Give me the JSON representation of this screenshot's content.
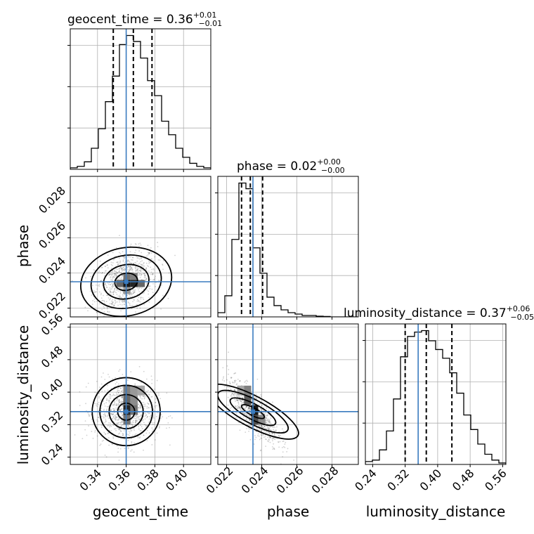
{
  "chart_data": {
    "type": "corner",
    "parameters": [
      "geocent_time",
      "phase",
      "luminosity_distance"
    ],
    "axis_labels": [
      "geocent_time",
      "phase",
      "luminosity_distance"
    ],
    "ranges": [
      [
        0.321,
        0.419
      ],
      [
        0.0215,
        0.0295
      ],
      [
        0.222,
        0.568
      ]
    ],
    "ticks": [
      [
        "0.34",
        "0.36",
        "0.38",
        "0.40"
      ],
      [
        "0.022",
        "0.024",
        "0.026",
        "0.028"
      ],
      [
        "0.24",
        "0.32",
        "0.40",
        "0.48",
        "0.56"
      ]
    ],
    "truths": [
      0.36,
      0.0235,
      0.352
    ],
    "titles": [
      {
        "label": "geocent_time = 0.36",
        "plus": "+0.01",
        "minus": "−0.01"
      },
      {
        "label": "phase = 0.02",
        "plus": "+0.00",
        "minus": "−0.00"
      },
      {
        "label": "luminosity_distance = 0.37",
        "plus": "+0.06",
        "minus": "−0.05"
      }
    ],
    "quantile_lines": [
      [
        0.351,
        0.365,
        0.378
      ],
      [
        0.02285,
        0.02335,
        0.02405
      ],
      [
        0.32,
        0.372,
        0.435
      ]
    ],
    "histograms": [
      {
        "counts": [
          1,
          2,
          5,
          14,
          27,
          45,
          62,
          83,
          89,
          85,
          74,
          59,
          49,
          32,
          23,
          14,
          8,
          4,
          2,
          1
        ]
      },
      {
        "counts": [
          3,
          15,
          55,
          95,
          91,
          49,
          31,
          14,
          8,
          5,
          3,
          2,
          1,
          1,
          0.5,
          0.3,
          0,
          0,
          0,
          0
        ]
      },
      {
        "counts": [
          2,
          3,
          10,
          23,
          45,
          74,
          88,
          91,
          92,
          85,
          79,
          73,
          63,
          49,
          34,
          24,
          14,
          7,
          3,
          1
        ]
      }
    ],
    "density_cells": [
      {
        "panel": "phase-vs-geocent_time",
        "x": 0.358,
        "y": 0.0232,
        "w": 0.005,
        "h": 0.0004,
        "level": 0.9
      },
      {
        "panel": "phase-vs-geocent_time",
        "x": 0.363,
        "y": 0.0232,
        "w": 0.005,
        "h": 0.0004,
        "level": 0.85
      },
      {
        "panel": "phase-vs-geocent_time",
        "x": 0.353,
        "y": 0.0232,
        "w": 0.005,
        "h": 0.0004,
        "level": 0.6
      },
      {
        "panel": "phase-vs-geocent_time",
        "x": 0.368,
        "y": 0.0232,
        "w": 0.005,
        "h": 0.0004,
        "level": 0.6
      },
      {
        "panel": "phase-vs-geocent_time",
        "x": 0.358,
        "y": 0.0236,
        "w": 0.005,
        "h": 0.0004,
        "level": 0.55
      },
      {
        "panel": "phase-vs-geocent_time",
        "x": 0.363,
        "y": 0.0236,
        "w": 0.005,
        "h": 0.0004,
        "level": 0.5
      },
      {
        "panel": "phase-vs-geocent_time",
        "x": 0.358,
        "y": 0.0228,
        "w": 0.005,
        "h": 0.0004,
        "level": 0.4
      },
      {
        "panel": "luminosity_distance-vs-geocent_time",
        "x": 0.358,
        "y": 0.344,
        "w": 0.005,
        "h": 0.024,
        "level": 0.85
      },
      {
        "panel": "luminosity_distance-vs-geocent_time",
        "x": 0.358,
        "y": 0.368,
        "w": 0.005,
        "h": 0.024,
        "level": 0.6
      },
      {
        "panel": "luminosity_distance-vs-geocent_time",
        "x": 0.363,
        "y": 0.344,
        "w": 0.005,
        "h": 0.024,
        "level": 0.55
      },
      {
        "panel": "luminosity_distance-vs-geocent_time",
        "x": 0.358,
        "y": 0.392,
        "w": 0.005,
        "h": 0.024,
        "level": 0.5
      },
      {
        "panel": "luminosity_distance-vs-geocent_time",
        "x": 0.363,
        "y": 0.392,
        "w": 0.005,
        "h": 0.024,
        "level": 0.4
      },
      {
        "panel": "luminosity_distance-vs-geocent_time",
        "x": 0.368,
        "y": 0.392,
        "w": 0.005,
        "h": 0.024,
        "level": 0.35
      },
      {
        "panel": "luminosity_distance-vs-geocent_time",
        "x": 0.358,
        "y": 0.32,
        "w": 0.005,
        "h": 0.024,
        "level": 0.55
      },
      {
        "panel": "luminosity_distance-vs-geocent_time",
        "x": 0.363,
        "y": 0.368,
        "w": 0.005,
        "h": 0.024,
        "level": 0.45
      },
      {
        "panel": "luminosity_distance-vs-phase",
        "x": 0.0234,
        "y": 0.344,
        "w": 0.0004,
        "h": 0.024,
        "level": 0.9
      },
      {
        "panel": "luminosity_distance-vs-phase",
        "x": 0.0234,
        "y": 0.32,
        "w": 0.0004,
        "h": 0.024,
        "level": 0.7
      },
      {
        "panel": "luminosity_distance-vs-phase",
        "x": 0.023,
        "y": 0.368,
        "w": 0.0004,
        "h": 0.024,
        "level": 0.65
      },
      {
        "panel": "luminosity_distance-vs-phase",
        "x": 0.023,
        "y": 0.392,
        "w": 0.0004,
        "h": 0.024,
        "level": 0.5
      },
      {
        "panel": "luminosity_distance-vs-phase",
        "x": 0.0238,
        "y": 0.32,
        "w": 0.0004,
        "h": 0.024,
        "level": 0.45
      },
      {
        "panel": "luminosity_distance-vs-phase",
        "x": 0.0226,
        "y": 0.392,
        "w": 0.0004,
        "h": 0.024,
        "level": 0.35
      }
    ]
  }
}
